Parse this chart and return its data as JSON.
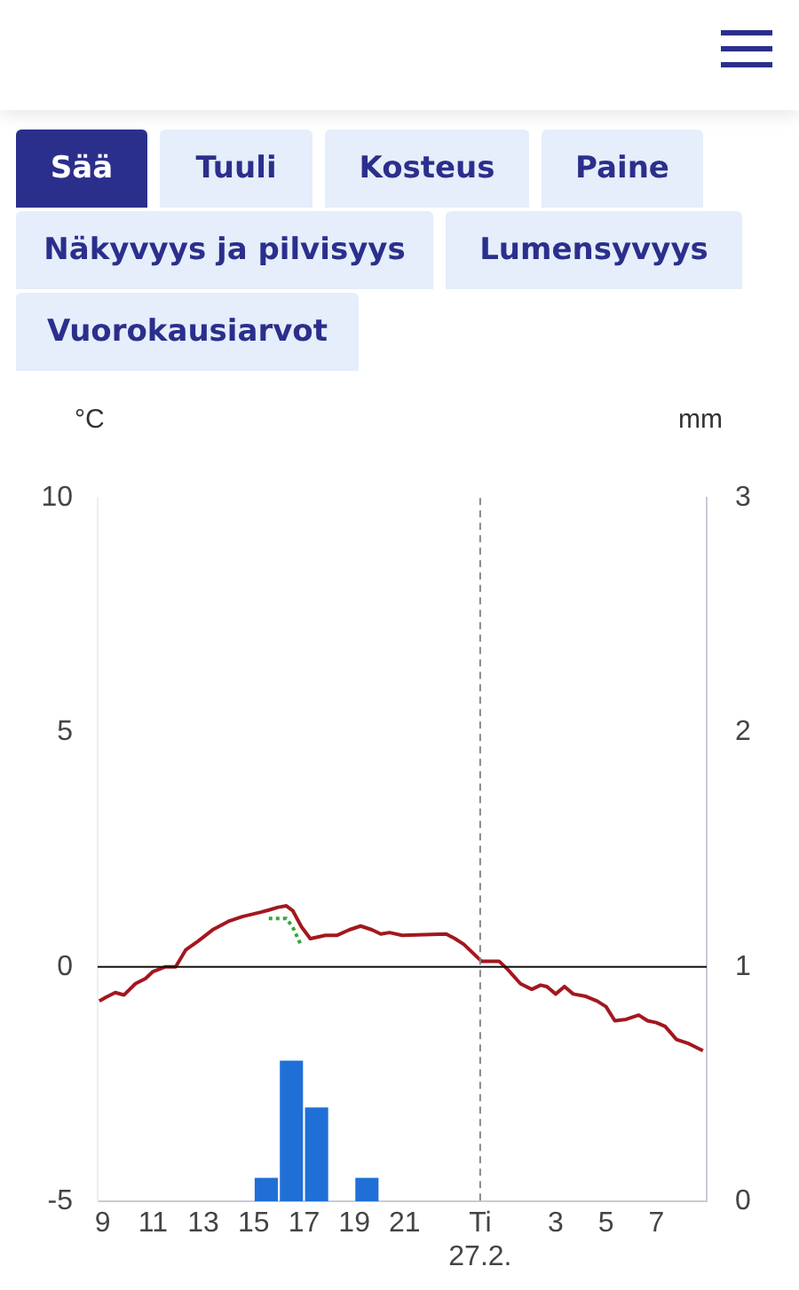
{
  "chart_data": {
    "type": "line",
    "ylabel": "°C",
    "y2label": "mm",
    "x": [
      "--02-26T08:52",
      "--02-26T09:08",
      "--02-26T09:30",
      "--02-26T09:51",
      "--02-26T10:18",
      "--02-26T10:42",
      "--02-26T11:00",
      "--02-26T11:30",
      "--02-26T11:54",
      "--02-26T12:18",
      "--02-26T12:48",
      "--02-26T13:24",
      "--02-26T14:00",
      "--02-26T14:33",
      "--02-26T15:15",
      "--02-26T15:36",
      "--02-26T15:58",
      "--02-26T16:18",
      "--02-26T16:33",
      "--02-26T16:54",
      "--02-26T17:15",
      "--02-26T17:51",
      "--02-26T18:18",
      "--02-26T18:48",
      "--02-26T19:15",
      "--02-26T19:42",
      "--02-26T20:03",
      "--02-26T20:24",
      "--02-26T20:54",
      "--02-26T22:39",
      "--02-26T23:00",
      "--02-26T23:21",
      "--02-27T00:03",
      "--02-27T00:45",
      "--02-27T01:06",
      "--02-27T01:36",
      "--02-27T02:03",
      "--02-27T02:24",
      "--02-27T02:39",
      "--02-27T03:00",
      "--02-27T03:21",
      "--02-27T03:42",
      "--02-27T04:12",
      "--02-27T04:39",
      "--02-27T05:00",
      "--02-27T05:21",
      "--02-27T05:48",
      "--02-27T06:18",
      "--02-27T06:39",
      "--02-27T07:00",
      "--02-27T07:21",
      "--02-27T07:48",
      "--02-27T08:18",
      "--02-27T08:51"
    ],
    "series": [
      {
        "color": "#a3171f",
        "line_style": "solid",
        "values": [
          -0.73,
          -0.65,
          -0.55,
          -0.6,
          -0.36,
          -0.25,
          -0.1,
          0,
          0,
          0.36,
          0.55,
          0.8,
          0.97,
          1.07,
          1.16,
          1.21,
          1.27,
          1.3,
          1.2,
          0.85,
          0.6,
          0.67,
          0.67,
          0.79,
          0.87,
          0.79,
          0.7,
          0.73,
          0.67,
          0.7,
          0.6,
          0.48,
          0.12,
          0.12,
          -0.06,
          -0.36,
          -0.48,
          -0.39,
          -0.42,
          -0.58,
          -0.42,
          -0.58,
          -0.63,
          -0.73,
          -0.85,
          -1.15,
          -1.12,
          -1.03,
          -1.15,
          -1.19,
          -1.27,
          -1.55,
          -1.64,
          -1.79
        ]
      },
      {
        "color": "#3aa53a",
        "line_style": "dotted",
        "values": [
          null,
          null,
          null,
          null,
          null,
          null,
          null,
          null,
          null,
          null,
          null,
          null,
          null,
          null,
          null,
          1.03,
          1.03,
          1.03,
          0.85,
          0.44,
          null,
          null,
          null,
          null,
          null,
          null,
          null,
          null,
          null,
          null,
          null,
          null,
          null,
          null,
          null,
          null,
          null,
          null,
          null,
          null,
          null,
          null,
          null,
          null,
          null,
          null,
          null,
          null,
          null,
          null,
          null,
          null,
          null,
          null
        ]
      },
      {
        "type": "bar",
        "axis": "y2",
        "color": "#1f6fd6",
        "x": [
          "--02-26T15:30",
          "--02-26T16:30",
          "--02-26T17:30",
          "--02-26T19:30"
        ],
        "values": [
          0.1,
          0.6,
          0.4,
          0.1
        ]
      }
    ],
    "xlim": [
      "--02-26T08:48",
      "--02-27T09:00"
    ],
    "xticks": [
      {
        "value": "--02-26T09:00",
        "label": "9"
      },
      {
        "value": "--02-26T11:00",
        "label": "11"
      },
      {
        "value": "--02-26T13:00",
        "label": "13"
      },
      {
        "value": "--02-26T15:00",
        "label": "15"
      },
      {
        "value": "--02-26T17:00",
        "label": "17"
      },
      {
        "value": "--02-26T19:00",
        "label": "19"
      },
      {
        "value": "--02-26T21:00",
        "label": "21"
      },
      {
        "value": "--02-27T00:00",
        "label": "Ti\n27.2."
      },
      {
        "value": "--02-27T03:00",
        "label": "3"
      },
      {
        "value": "--02-27T05:00",
        "label": "5"
      },
      {
        "value": "--02-27T07:00",
        "label": "7"
      }
    ],
    "ylim": [
      -5,
      10
    ],
    "yticks": [
      -5,
      0,
      5,
      10
    ],
    "y2lim": [
      0,
      3
    ],
    "y2ticks": [
      0,
      1,
      2,
      3
    ],
    "ref_lines": [
      {
        "axis": "y",
        "value": 0,
        "color": "#111111",
        "line_style": "solid"
      },
      {
        "axis": "x",
        "value": "--02-27T00:00",
        "color": "#888888",
        "line_style": "dashed"
      }
    ],
    "annotations": [
      "Sää",
      "Tuuli",
      "Kosteus",
      "Paine",
      "Näkyvyys ja pilvisyys",
      "Lumensyvyys",
      "Vuorokausiarvot"
    ],
    "grid": false,
    "legend": false
  }
}
